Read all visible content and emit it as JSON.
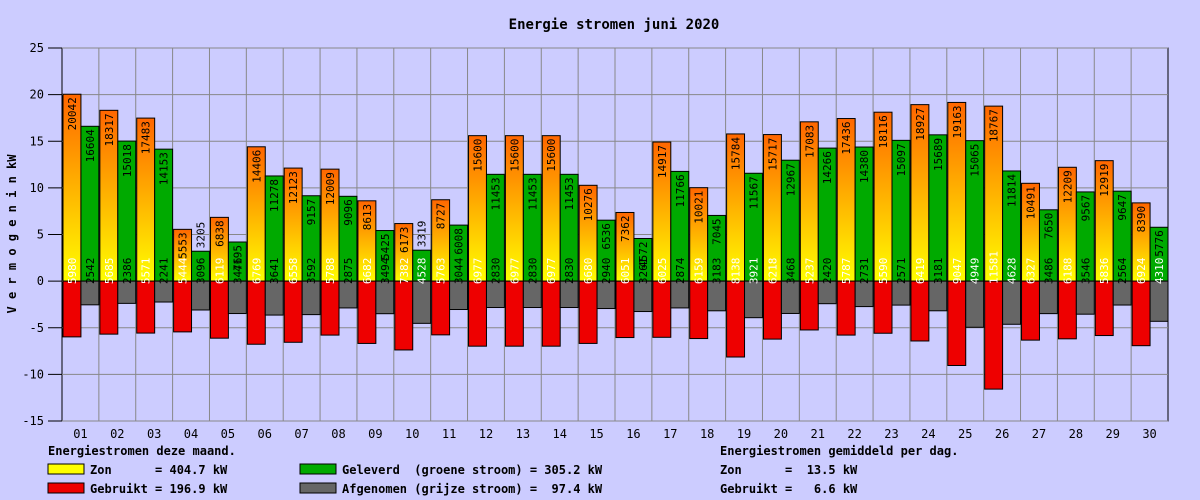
{
  "chart_data": {
    "type": "bar",
    "title": "Energie stromen juni 2020",
    "ylabel": "V e r m o g e n   i n   kW",
    "xlabel": "",
    "ylim": [
      -15,
      25
    ],
    "yticks": [
      -15,
      -10,
      -5,
      0,
      5,
      10,
      15,
      20,
      25
    ],
    "grid": true,
    "categories": [
      "01",
      "02",
      "03",
      "04",
      "05",
      "06",
      "07",
      "08",
      "09",
      "10",
      "11",
      "12",
      "13",
      "14",
      "15",
      "16",
      "17",
      "18",
      "19",
      "20",
      "21",
      "22",
      "23",
      "24",
      "25",
      "26",
      "27",
      "28",
      "29",
      "30"
    ],
    "series": [
      {
        "name": "Zon",
        "values": [
          20042,
          18317,
          17483,
          5553,
          6838,
          14406,
          12123,
          12009,
          8613,
          6173,
          8727,
          15600,
          15600,
          15600,
          10276,
          7362,
          14917,
          10021,
          15784,
          15717,
          17083,
          17436,
          18116,
          18927,
          19163,
          18767,
          10491,
          12209,
          12919,
          8390
        ],
        "colors": [
          "#ff6600",
          "#ffff00"
        ],
        "label_color": "#000000"
      },
      {
        "name": "Geleverd",
        "values": [
          16604,
          15018,
          14153,
          3205,
          4195,
          11278,
          9157,
          9096,
          5425,
          3319,
          6008,
          11453,
          11453,
          11453,
          6536,
          4572,
          11766,
          7045,
          11567,
          12967,
          14266,
          14380,
          15097,
          15689,
          15065,
          11814,
          7650,
          9567,
          9647,
          5776
        ],
        "color": "#00aa00",
        "label_color": "#000000"
      },
      {
        "name": "Gebruikt",
        "values": [
          5980,
          5685,
          5571,
          5444,
          6119,
          6769,
          6558,
          5788,
          6682,
          7382,
          5763,
          6977,
          6977,
          6977,
          6680,
          6051,
          6025,
          6159,
          8138,
          6218,
          5237,
          5787,
          5590,
          6419,
          9047,
          11581,
          6327,
          6188,
          5836,
          6924
        ],
        "color": "#ee0000",
        "label_color": "#ffffff"
      },
      {
        "name": "Afgenomen",
        "values": [
          2542,
          2386,
          2241,
          3096,
          3476,
          3641,
          3592,
          2875,
          3494,
          4528,
          3044,
          2830,
          2830,
          2830,
          2940,
          3261,
          2874,
          3183,
          3921,
          3468,
          2420,
          2731,
          2571,
          3181,
          4949,
          4628,
          3486,
          3546,
          2564,
          4310
        ],
        "color": "#666666",
        "label_color_inside": "#ffffff",
        "label_color_outside": "#000000"
      }
    ]
  },
  "legend": {
    "heading": "Energiestromen deze maand.",
    "items": [
      {
        "text": "Zon      = 404.7 kW",
        "color": "#ffff00"
      },
      {
        "text": "Gebruikt = 196.9 kW",
        "color": "#ee0000"
      },
      {
        "text": "Geleverd  (groene stroom) = 305.2 kW",
        "color": "#00aa00"
      },
      {
        "text": "Afgenomen (grijze stroom) =  97.4 kW",
        "color": "#666666"
      }
    ]
  },
  "daily": {
    "heading": "Energiestromen gemiddeld per dag.",
    "lines": [
      "Zon      =  13.5 kW",
      "Gebruikt =   6.6 kW"
    ]
  }
}
